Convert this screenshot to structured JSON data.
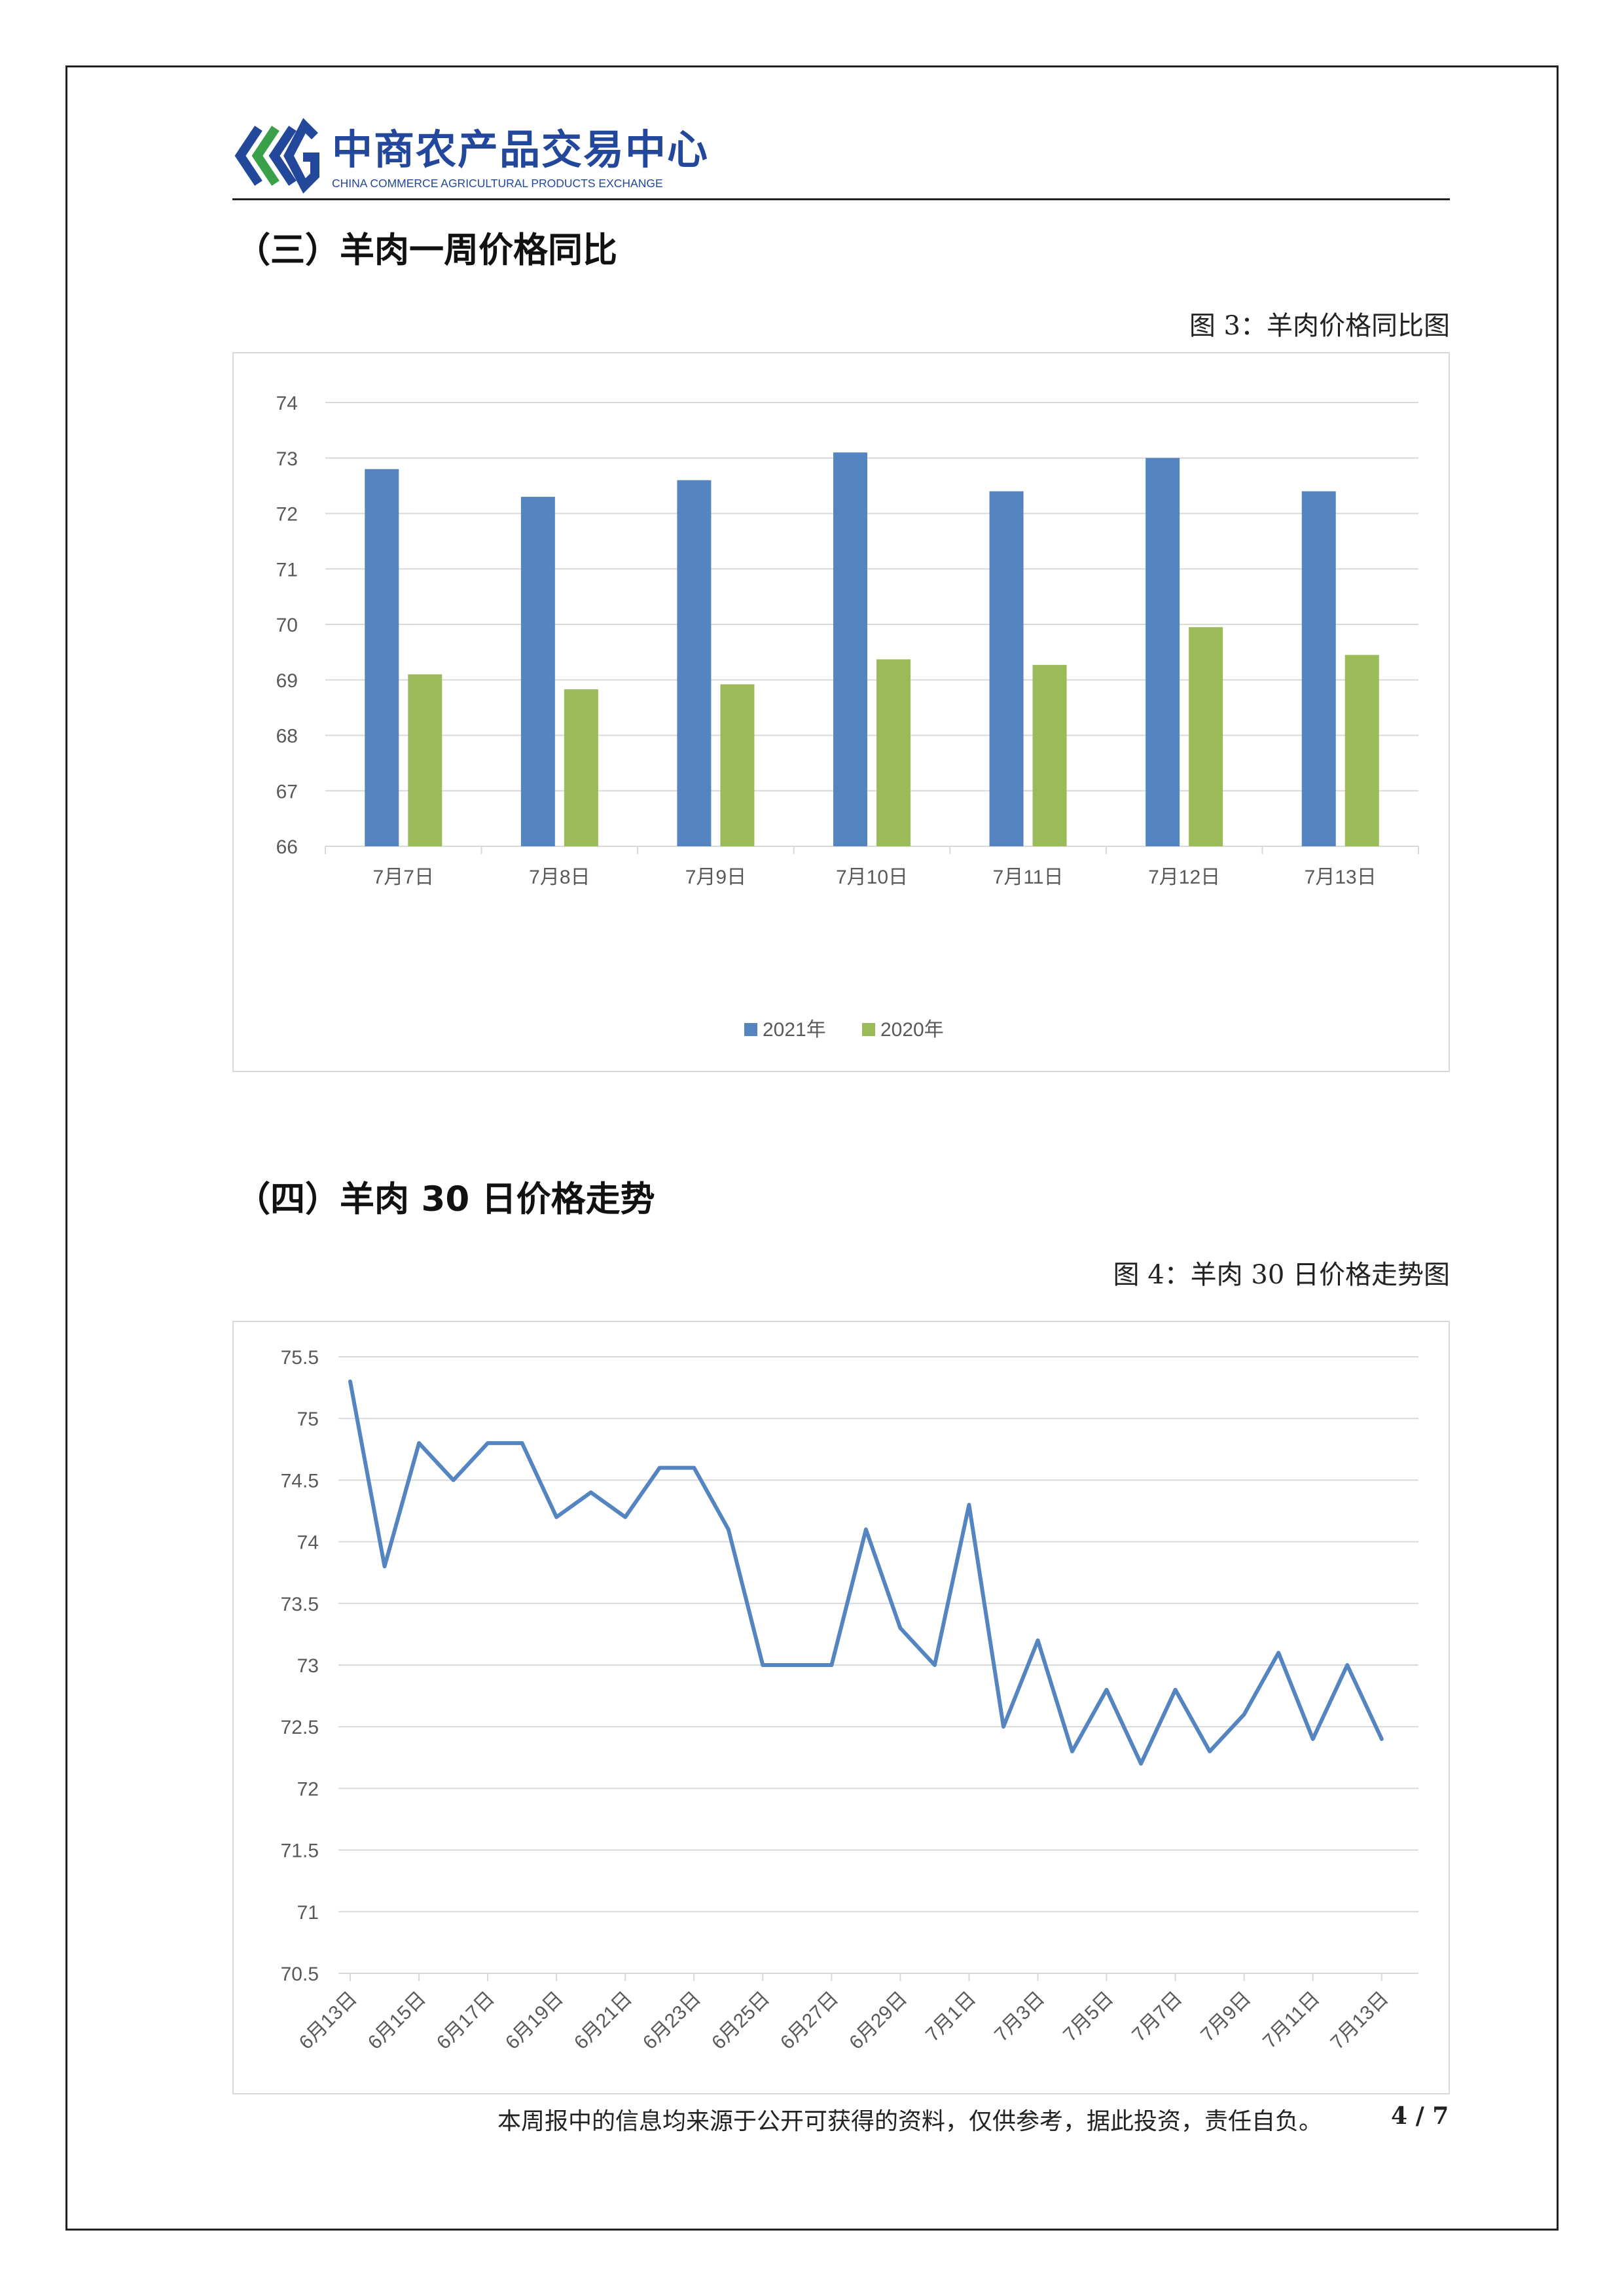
{
  "header": {
    "logo_cn": "中商农产品交易中心",
    "logo_en": "CHINA COMMERCE AGRICULTURAL PRODUCTS EXCHANGE",
    "brand_color": "#23479b",
    "brand_green": "#3aa04a"
  },
  "section3": {
    "title": "（三）羊肉一周价格同比",
    "caption": "图 3：羊肉价格同比图"
  },
  "section4": {
    "title": "（四）羊肉 30 日价格走势",
    "caption": "图 4：羊肉 30 日价格走势图"
  },
  "footer": {
    "disclaimer": "本周报中的信息均来源于公开可获得的资料，仅供参考，据此投资，责任自负。",
    "page": "4 / 7"
  },
  "chart_data": [
    {
      "type": "bar",
      "categories": [
        "7月7日",
        "7月8日",
        "7月9日",
        "7月10日",
        "7月11日",
        "7月12日",
        "7月13日"
      ],
      "series": [
        {
          "name": "2021年",
          "color": "#5585c1",
          "values": [
            72.8,
            72.3,
            72.6,
            73.1,
            72.4,
            73.0,
            72.4
          ]
        },
        {
          "name": "2020年",
          "color": "#9bbb59",
          "values": [
            69.1,
            68.83,
            68.92,
            69.37,
            69.27,
            69.95,
            69.45
          ]
        }
      ],
      "ylim": [
        66,
        74
      ],
      "yticks": [
        74,
        73,
        72,
        71,
        70,
        69,
        68,
        67,
        66
      ],
      "grid": true,
      "legend": "bottom-center"
    },
    {
      "type": "line",
      "x": [
        "6月13日",
        "6月14日",
        "6月15日",
        "6月16日",
        "6月17日",
        "6月18日",
        "6月19日",
        "6月20日",
        "6月21日",
        "6月22日",
        "6月23日",
        "6月24日",
        "6月25日",
        "6月26日",
        "6月27日",
        "6月28日",
        "6月29日",
        "6月30日",
        "7月1日",
        "7月2日",
        "7月3日",
        "7月4日",
        "7月5日",
        "7月6日",
        "7月7日",
        "7月8日",
        "7月9日",
        "7月10日",
        "7月11日",
        "7月12日",
        "7月13日"
      ],
      "xtick_labels": [
        "6月13日",
        "6月15日",
        "6月17日",
        "6月19日",
        "6月21日",
        "6月23日",
        "6月25日",
        "6月27日",
        "6月29日",
        "7月1日",
        "7月3日",
        "7月5日",
        "7月7日",
        "7月9日",
        "7月11日",
        "7月13日"
      ],
      "values": [
        75.3,
        73.8,
        74.8,
        74.5,
        74.8,
        74.8,
        74.2,
        74.4,
        74.2,
        74.6,
        74.6,
        74.1,
        73.0,
        73.0,
        73.0,
        74.1,
        73.3,
        73.0,
        74.3,
        72.5,
        73.2,
        72.3,
        72.8,
        72.2,
        72.8,
        72.3,
        72.6,
        73.1,
        72.4,
        73.0,
        72.4
      ],
      "ylim": [
        70.5,
        75.5
      ],
      "yticks": [
        "75.5",
        "75",
        "74.5",
        "74",
        "73.5",
        "73",
        "72.5",
        "72",
        "71.5",
        "71",
        "70.5"
      ],
      "grid": true,
      "line_color": "#5585c1"
    }
  ]
}
